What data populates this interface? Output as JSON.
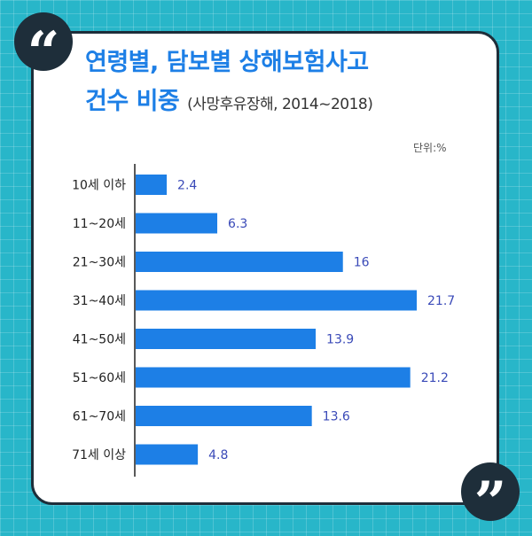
{
  "header": {
    "title_line1": "연령별, 담보별 상해보험사고",
    "title_line2": "건수 비중",
    "subtitle": "(사망후유장해, 2014~2018)",
    "unit": "단위:%"
  },
  "chart_data": {
    "type": "bar",
    "orientation": "horizontal",
    "title": "연령별, 담보별 상해보험사고 건수 비중 (사망후유장해, 2014~2018)",
    "categories": [
      "10세 이하",
      "11~20세",
      "21~30세",
      "31~40세",
      "41~50세",
      "51~60세",
      "61~70세",
      "71세 이상"
    ],
    "values": [
      2.4,
      6.3,
      16,
      21.7,
      13.9,
      21.2,
      13.6,
      4.8
    ],
    "value_labels": [
      "2.4",
      "6.3",
      "16",
      "21.7",
      "13.9",
      "21.2",
      "13.6",
      "4.8"
    ],
    "xlabel": "",
    "ylabel": "",
    "xlim": [
      0,
      21.7
    ],
    "unit": "%",
    "bar_color": "#1d7fe6"
  },
  "colors": {
    "accent": "#1d7fe6",
    "background": "#28b6c9",
    "dark": "#1e2e3a",
    "value_text": "#3a4ab8"
  }
}
